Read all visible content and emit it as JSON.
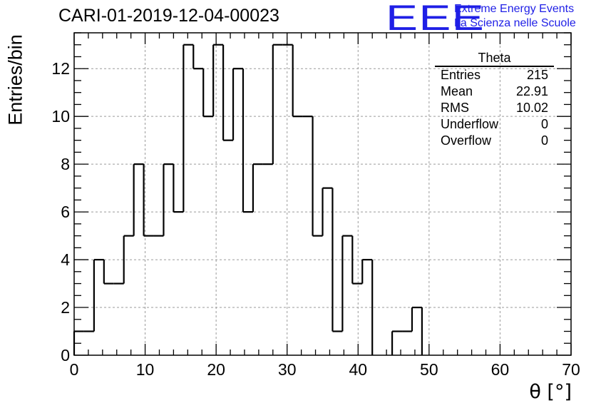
{
  "chart_data": {
    "type": "histogram",
    "title": "CARI-01-2019-12-04-00023",
    "xlabel": "θ [°]",
    "ylabel": "Entries/bin",
    "xlim": [
      0,
      70
    ],
    "ylim": [
      0,
      13.5
    ],
    "x_ticks": [
      0,
      10,
      20,
      30,
      40,
      50,
      60,
      70
    ],
    "y_ticks": [
      0,
      2,
      4,
      6,
      8,
      10,
      12
    ],
    "grid": true,
    "bin_width": 1.4,
    "values": [
      1,
      1,
      4,
      3,
      3,
      5,
      8,
      5,
      5,
      8,
      6,
      13,
      12,
      10,
      13,
      9,
      12,
      6,
      8,
      8,
      13,
      13,
      10,
      10,
      5,
      7,
      1,
      5,
      3,
      4,
      0,
      0,
      1,
      1,
      2,
      0,
      0,
      0,
      0,
      0,
      0,
      0,
      0,
      0,
      0,
      0,
      0,
      0,
      0,
      0
    ],
    "stats_box": {
      "title": "Theta",
      "rows": [
        {
          "label": "Entries",
          "value": "215"
        },
        {
          "label": "Mean",
          "value": "22.91"
        },
        {
          "label": "RMS",
          "value": "10.02"
        },
        {
          "label": "Underflow",
          "value": "0"
        },
        {
          "label": "Overflow",
          "value": "0"
        }
      ]
    }
  },
  "logo": {
    "mark": "EEE",
    "line1": "Extreme Energy Events",
    "line2": "La Scienza nelle Scuole",
    "color": "#1f1fe6"
  }
}
